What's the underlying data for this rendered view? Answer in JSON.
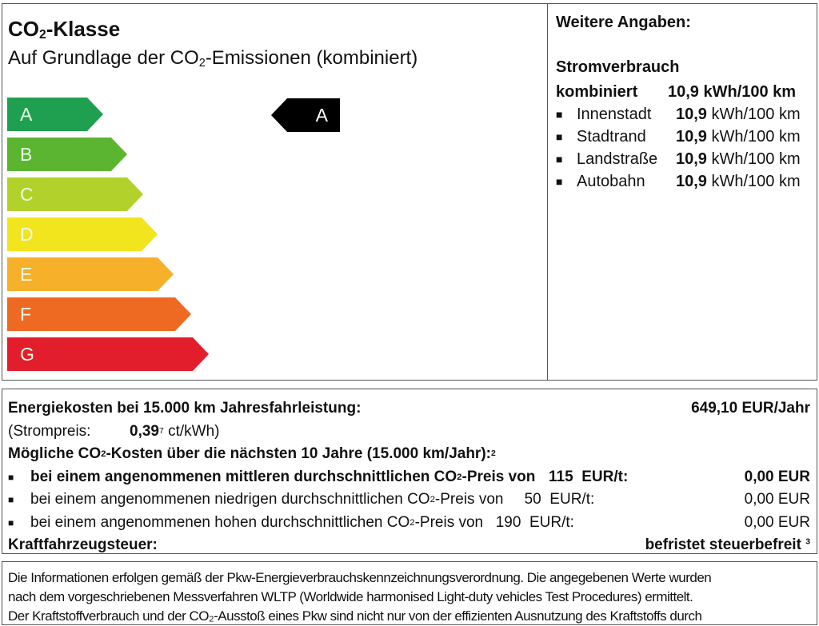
{
  "co2_class": {
    "title_prefix": "CO",
    "title_sub": "2",
    "title_suffix": "-Klasse",
    "subtitle_prefix": "Auf Grundlage der CO",
    "subtitle_sub": "2",
    "subtitle_suffix": "-Emissionen (kombiniert)",
    "classes": [
      {
        "label": "A",
        "color": "#1fa050"
      },
      {
        "label": "B",
        "color": "#5cb531"
      },
      {
        "label": "C",
        "color": "#b3d12b"
      },
      {
        "label": "D",
        "color": "#f2e41d"
      },
      {
        "label": "E",
        "color": "#f6b02a"
      },
      {
        "label": "F",
        "color": "#ee6a23"
      },
      {
        "label": "G",
        "color": "#e31e2c"
      }
    ],
    "current_class": "A"
  },
  "further": {
    "heading": "Weitere Angaben:",
    "consumption_heading": "Stromverbrauch",
    "combined_label": "kombiniert",
    "combined_value": "10,9 kWh/100 km",
    "items": [
      {
        "label": "Innenstadt",
        "value": "10,9",
        "unit": "kWh/100 km"
      },
      {
        "label": "Stadtrand",
        "value": "10,9",
        "unit": "kWh/100 km"
      },
      {
        "label": "Landstraße",
        "value": "10,9",
        "unit": "kWh/100 km"
      },
      {
        "label": "Autobahn",
        "value": "10,9",
        "unit": "kWh/100 km"
      }
    ]
  },
  "costs": {
    "energy_label": "Energiekosten bei 15.000 km Jahresfahrleistung:",
    "energy_value": "649,10 EUR/Jahr",
    "price_label": "(Strompreis:",
    "price_value": "0,39",
    "price_footnote": "7",
    "price_unit": "ct/kWh)",
    "co2_heading_prefix": "Mögliche CO",
    "co2_heading_sub": "2",
    "co2_heading_suffix": "-Kosten über die nächsten 10 Jahre (15.000 km/Jahr):",
    "co2_heading_footnote": "2",
    "scenarios": [
      {
        "prefix": "bei einem angenommenen mittleren durchschnittlichen CO",
        "suffix": "-Preis von",
        "price": "115",
        "unit": "EUR/t:",
        "value": "0,00 EUR",
        "bold": true
      },
      {
        "prefix": "bei einem angenommenen niedrigen durchschnittlichen CO",
        "suffix": "-Preis von",
        "price": "50",
        "unit": "EUR/t:",
        "value": "0,00 EUR",
        "bold": false
      },
      {
        "prefix": "bei einem angenommenen hohen durchschnittlichen CO",
        "suffix": "-Preis von",
        "price": "190",
        "unit": "EUR/t:",
        "value": "0,00 EUR",
        "bold": false
      }
    ],
    "tax_label": "Kraftfahrzeugsteuer:",
    "tax_value": "befristet steuerbefreit",
    "tax_footnote": "3"
  },
  "footer": {
    "lines": [
      "Die Informationen erfolgen gemäß der Pkw-Energieverbrauchskennzeichnungsverordnung. Die angegebenen Werte wurden",
      "nach dem vorgeschriebenen Messverfahren WLTP (Worldwide harmonised Light-duty vehicles Test Procedures) ermittelt.",
      "Der Kraftstoffverbrauch und der CO₂-Ausstoß eines Pkw sind nicht nur von der effizienten Ausnutzung des Kraftstoffs durch"
    ]
  }
}
